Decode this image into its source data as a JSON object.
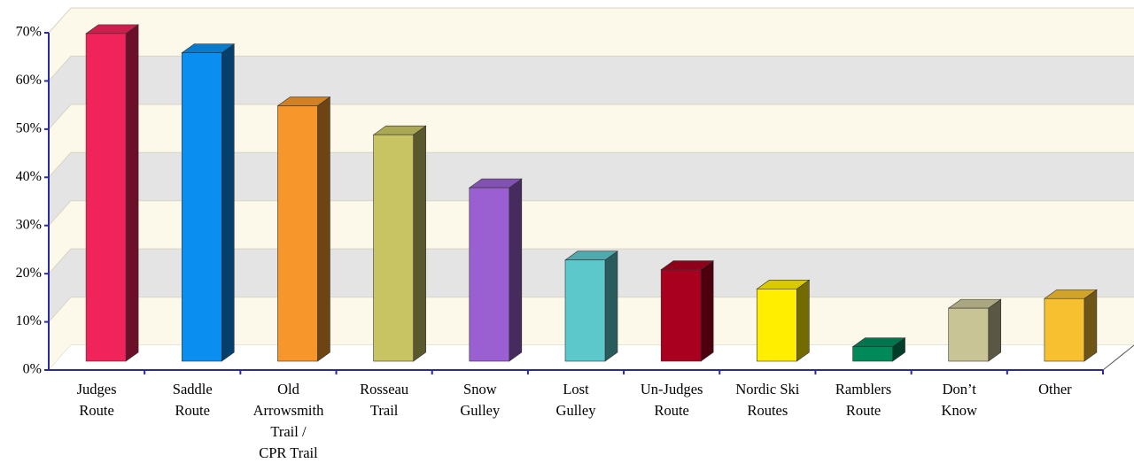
{
  "chart_data": {
    "type": "bar3d",
    "categories": [
      "Judges\nRoute",
      "Saddle\nRoute",
      "Old\nArrowsmith\nTrail /\nCPR Trail",
      "Rosseau\nTrail",
      "Snow\nGulley",
      "Lost\nGulley",
      "Un-Judges\nRoute",
      "Nordic Ski\nRoutes",
      "Ramblers\nRoute",
      "Don’t\nKnow",
      "Other"
    ],
    "values": [
      68,
      64,
      53,
      47,
      36,
      21,
      19,
      15,
      3,
      11,
      13
    ],
    "colors": [
      "#f0245a",
      "#0a8ff0",
      "#f7962a",
      "#c8c464",
      "#9a5fd0",
      "#5cc8cc",
      "#a8001e",
      "#ffee00",
      "#008a5a",
      "#c8c496",
      "#f7c030"
    ],
    "ylim": [
      0,
      70
    ],
    "yticks": [
      {
        "value": 0,
        "label": "0%"
      },
      {
        "value": 10,
        "label": "10%"
      },
      {
        "value": 20,
        "label": "20%"
      },
      {
        "value": 30,
        "label": "30%"
      },
      {
        "value": 40,
        "label": "40%"
      },
      {
        "value": 50,
        "label": "50%"
      },
      {
        "value": 60,
        "label": "60%"
      },
      {
        "value": 70,
        "label": "70%"
      }
    ],
    "grid": true
  }
}
